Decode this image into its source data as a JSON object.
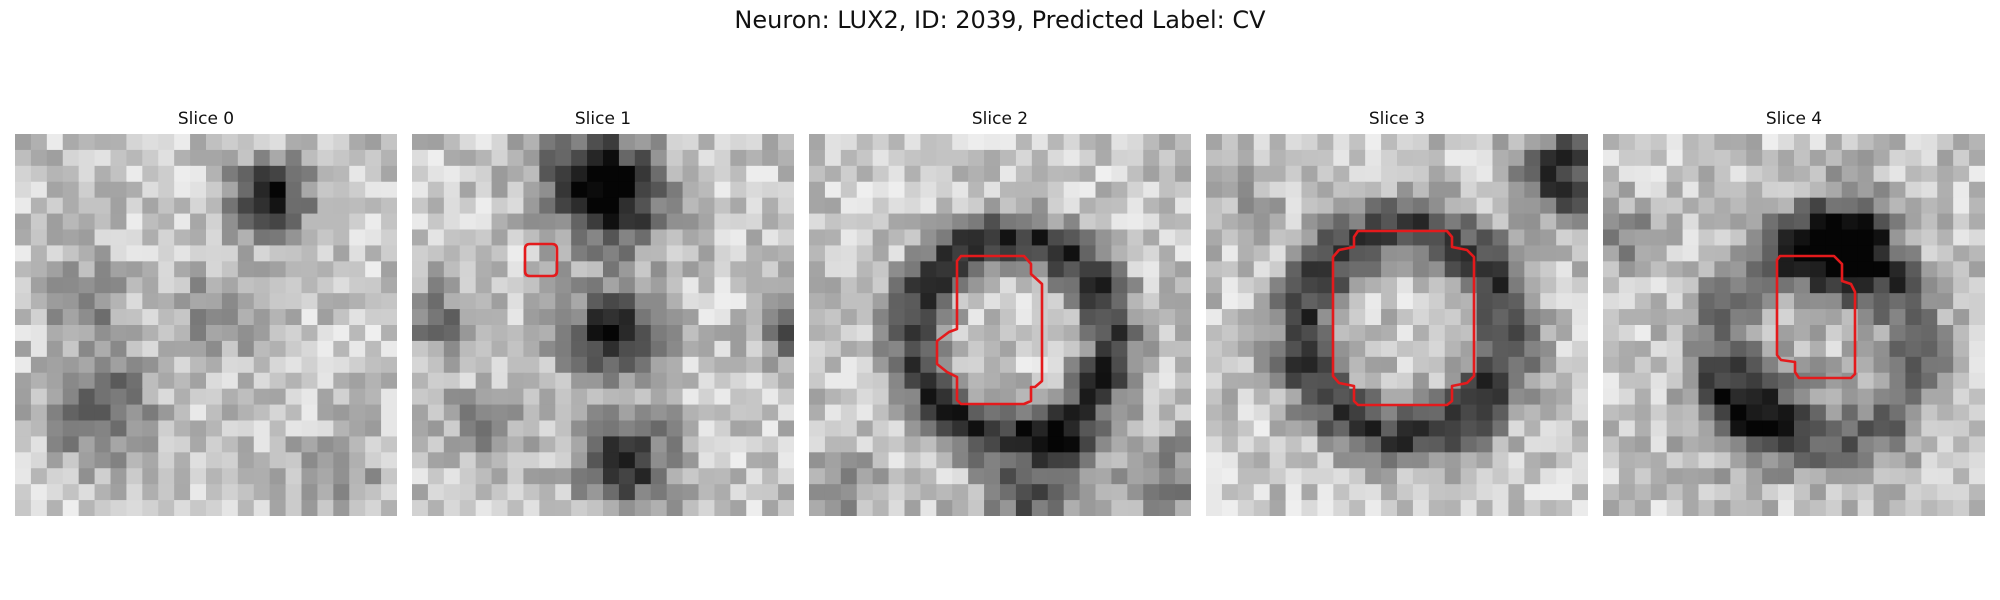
{
  "figure": {
    "title": "Neuron: LUX2, ID: 2039, Predicted Label: CV"
  },
  "panels": [
    {
      "title": "Slice 0",
      "has_outline": false
    },
    {
      "title": "Slice 1",
      "has_outline": true
    },
    {
      "title": "Slice 2",
      "has_outline": true
    },
    {
      "title": "Slice 3",
      "has_outline": true
    },
    {
      "title": "Slice 4",
      "has_outline": true
    }
  ],
  "colors": {
    "outline": "#e41a1c",
    "background": "#ffffff",
    "colormap": "grayscale"
  }
}
